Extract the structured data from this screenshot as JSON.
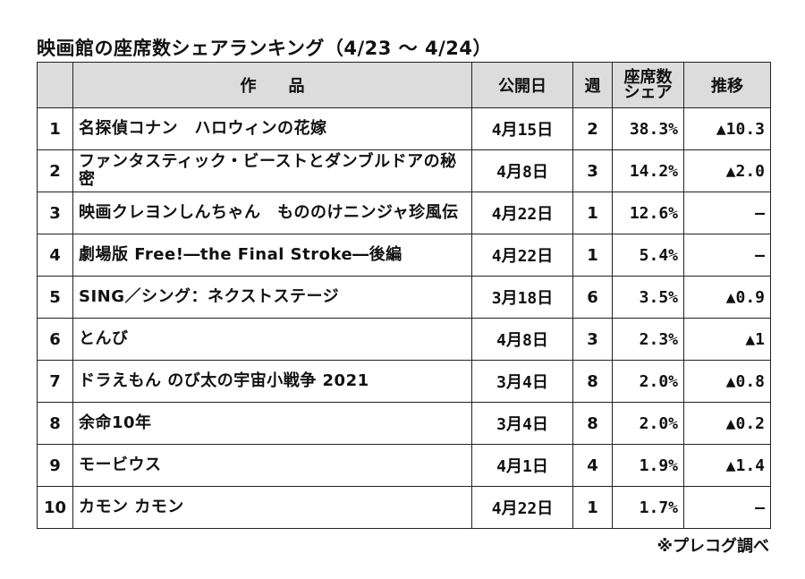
{
  "title": "映画館の座席数シェアランキング（4/23 ～ 4/24）",
  "headers": {
    "rank": "",
    "title": "作　　品",
    "release": "公開日",
    "week": "週",
    "share_line1": "座席数",
    "share_line2": "シェア",
    "trend": "推移"
  },
  "rows": [
    {
      "rank": "1",
      "title": "名探偵コナン　ハロウィンの花嫁",
      "release": "4月15日",
      "week": "2",
      "share": "38.3%",
      "trend": "▲10.3"
    },
    {
      "rank": "2",
      "title": "ファンタスティック・ビーストとダンブルドアの秘密",
      "release": "4月8日",
      "week": "3",
      "share": "14.2%",
      "trend": "▲2.0"
    },
    {
      "rank": "3",
      "title": "映画クレヨンしんちゃん　もののけニンジャ珍風伝",
      "release": "4月22日",
      "week": "1",
      "share": "12.6%",
      "trend": "―"
    },
    {
      "rank": "4",
      "title": "劇場版 Free!―the Final Stroke―後編",
      "release": "4月22日",
      "week": "1",
      "share": "5.4%",
      "trend": "―"
    },
    {
      "rank": "5",
      "title": "SING／シング：ネクストステージ",
      "release": "3月18日",
      "week": "6",
      "share": "3.5%",
      "trend": "▲0.9"
    },
    {
      "rank": "6",
      "title": "とんび",
      "release": "4月8日",
      "week": "3",
      "share": "2.3%",
      "trend": "▲1"
    },
    {
      "rank": "7",
      "title": "ドラえもん のび太の宇宙小戦争 2021",
      "release": "3月4日",
      "week": "8",
      "share": "2.0%",
      "trend": "▲0.8"
    },
    {
      "rank": "8",
      "title": "余命10年",
      "release": "3月4日",
      "week": "8",
      "share": "2.0%",
      "trend": "▲0.2"
    },
    {
      "rank": "9",
      "title": "モービウス",
      "release": "4月1日",
      "week": "4",
      "share": "1.9%",
      "trend": "▲1.4"
    },
    {
      "rank": "10",
      "title": "カモン カモン",
      "release": "4月22日",
      "week": "1",
      "share": "1.7%",
      "trend": "―"
    }
  ],
  "source": "※プレコグ調べ"
}
